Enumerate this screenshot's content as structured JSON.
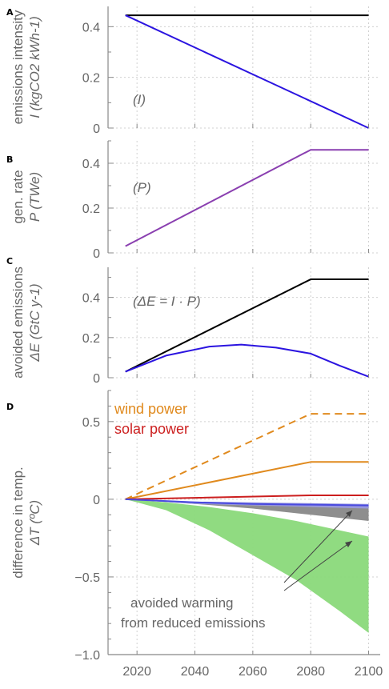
{
  "chart_data": [
    {
      "panel": "A",
      "type": "line",
      "ylabel_line1": "emissions intensity",
      "ylabel_line2": "I (kgCO2 kWh-1)",
      "annotation": "(I)",
      "yticks": [
        "0",
        "0.2",
        "0.4"
      ],
      "ylim": [
        0,
        0.48
      ],
      "series": [
        {
          "color": "#000000",
          "x": [
            2016,
            2100
          ],
          "y": [
            0.445,
            0.445
          ]
        },
        {
          "color": "#2b14e0",
          "x": [
            2016,
            2100
          ],
          "y": [
            0.445,
            0.0
          ]
        }
      ]
    },
    {
      "panel": "B",
      "type": "line",
      "ylabel_line1": "gen. rate",
      "ylabel_line2": "P (TWe)",
      "annotation": "(P)",
      "yticks": [
        "0",
        "0.2",
        "0.4"
      ],
      "ylim": [
        0,
        0.5
      ],
      "series": [
        {
          "color": "#8a3fb0",
          "x": [
            2016,
            2080,
            2100
          ],
          "y": [
            0.03,
            0.46,
            0.46
          ]
        }
      ]
    },
    {
      "panel": "C",
      "type": "line",
      "ylabel_line1": "avoided emissions",
      "ylabel_line2": "ΔE (GtC y-1)",
      "annotation": "(ΔE = I · P)",
      "yticks": [
        "0",
        "0.2",
        "0.4"
      ],
      "ylim": [
        0,
        0.55
      ],
      "series": [
        {
          "color": "#000000",
          "x": [
            2016,
            2080,
            2100
          ],
          "y": [
            0.03,
            0.49,
            0.49
          ]
        },
        {
          "color": "#2b14e0",
          "x": [
            2016,
            2030,
            2045,
            2056,
            2068,
            2080,
            2090,
            2100
          ],
          "y": [
            0.03,
            0.11,
            0.155,
            0.165,
            0.15,
            0.12,
            0.06,
            0.005
          ]
        }
      ]
    },
    {
      "panel": "D",
      "type": "line",
      "ylabel_line1": "difference in temp.",
      "ylabel_line2": "ΔT (ºC)",
      "legend": [
        {
          "label": "wind power",
          "color": "#e08a1e"
        },
        {
          "label": "solar power",
          "color": "#cc1f1f"
        }
      ],
      "annotation_line1": "avoided warming",
      "annotation_line2": "from reduced emissions",
      "xlabel_ticks": [
        "2020",
        "2040",
        "2060",
        "2080",
        "2100"
      ],
      "yticks": [
        "−1.0",
        "−0.5",
        "0",
        "0.5"
      ],
      "ylim": [
        -1.0,
        0.7
      ],
      "series": [
        {
          "name": "wind power",
          "color": "#e08a1e",
          "dashed": true,
          "x": [
            2016,
            2080,
            2100
          ],
          "y": [
            0.0,
            0.55,
            0.55
          ]
        },
        {
          "name": "wind power",
          "color": "#e08a1e",
          "dashed": false,
          "x": [
            2016,
            2080,
            2100
          ],
          "y": [
            0.0,
            0.24,
            0.24
          ]
        },
        {
          "name": "solar power",
          "color": "#cc1f1f",
          "dashed": false,
          "x": [
            2016,
            2080,
            2100
          ],
          "y": [
            0.0,
            0.025,
            0.025
          ]
        },
        {
          "color": "#4a4ae0",
          "dashed": false,
          "x": [
            2016,
            2040,
            2060,
            2080,
            2100
          ],
          "y": [
            0.0,
            -0.02,
            -0.03,
            -0.035,
            -0.04
          ]
        }
      ],
      "bands": [
        {
          "color": "#8ad97a",
          "x": [
            2016,
            2030,
            2045,
            2060,
            2075,
            2090,
            2100
          ],
          "upper": [
            0.0,
            -0.02,
            -0.05,
            -0.09,
            -0.14,
            -0.2,
            -0.24
          ],
          "lower": [
            0.0,
            -0.07,
            -0.2,
            -0.36,
            -0.52,
            -0.72,
            -0.86
          ]
        },
        {
          "color": "#888888",
          "x": [
            2016,
            2040,
            2060,
            2080,
            2100
          ],
          "upper": [
            0.0,
            -0.02,
            -0.03,
            -0.035,
            -0.04
          ],
          "lower": [
            0.0,
            -0.03,
            -0.06,
            -0.1,
            -0.14
          ]
        },
        {
          "color": "#9a9adf",
          "x": [
            2016,
            2040,
            2060,
            2080,
            2100
          ],
          "upper": [
            0.0,
            -0.015,
            -0.02,
            -0.025,
            -0.03
          ],
          "lower": [
            0.0,
            -0.03,
            -0.04,
            -0.05,
            -0.06
          ]
        }
      ]
    }
  ],
  "xticks": [
    "2020",
    "2040",
    "2060",
    "2080",
    "2100"
  ],
  "xlim": [
    2010,
    2104
  ],
  "panel_letters": [
    "A",
    "B",
    "C",
    "D"
  ]
}
